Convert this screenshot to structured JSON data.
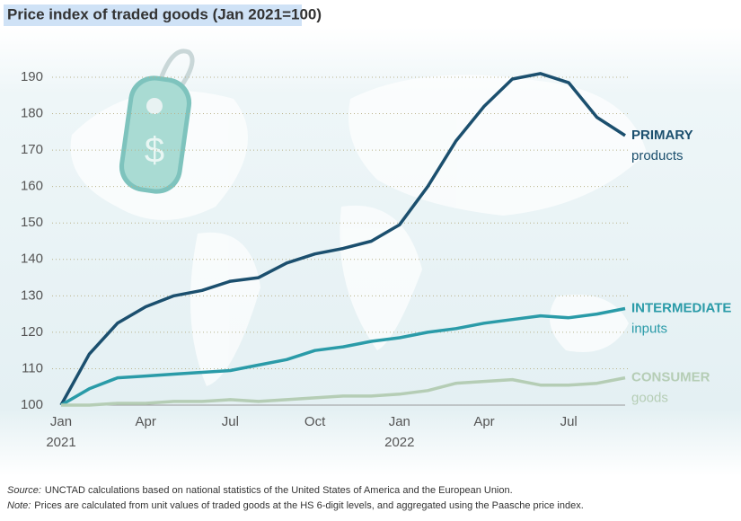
{
  "chart_data": {
    "type": "line",
    "title": "Price index of traded goods (Jan 2021=100)",
    "categories": [
      "Jan 2021",
      null,
      null,
      "Apr",
      null,
      null,
      "Jul",
      null,
      null,
      "Oct",
      null,
      null,
      "Jan 2022",
      null,
      null,
      "Apr",
      null,
      null,
      "Jul",
      null,
      null
    ],
    "ylim": [
      100,
      190
    ],
    "yticks": [
      100,
      110,
      120,
      130,
      140,
      150,
      160,
      170,
      180,
      190
    ],
    "grid": true,
    "series": [
      {
        "name": "PRIMARY",
        "sublabel": "products",
        "color": "#1b4f6e",
        "values": [
          100,
          114,
          122.5,
          127,
          130,
          131.5,
          134,
          135,
          139,
          141.5,
          143,
          145,
          149.5,
          160,
          172.5,
          182,
          189.5,
          191,
          188.5,
          179,
          174
        ]
      },
      {
        "name": "INTERMEDIATE",
        "sublabel": "inputs",
        "color": "#2a9ba8",
        "values": [
          100,
          104.5,
          107.5,
          108,
          108.5,
          109,
          109.5,
          111,
          112.5,
          115,
          116,
          117.5,
          118.5,
          120,
          121,
          122.5,
          123.5,
          124.5,
          124,
          125,
          126.5
        ]
      },
      {
        "name": "CONSUMER",
        "sublabel": "goods",
        "color": "#b5cdb5",
        "values": [
          100,
          100,
          100.5,
          100.5,
          101,
          101,
          101.5,
          101,
          101.5,
          102,
          102.5,
          102.5,
          103,
          104,
          106,
          106.5,
          107,
          105.5,
          105.5,
          106,
          107.5
        ]
      }
    ],
    "footnotes": [
      {
        "label": "Source:",
        "text": "UNCTAD calculations based on national statistics of the United States of America and the European Union."
      },
      {
        "label": "Note:",
        "text": "Prices are calculated from unit values of traded goods at the HS 6-digit levels, and aggregated using the Paasche price index."
      }
    ]
  }
}
